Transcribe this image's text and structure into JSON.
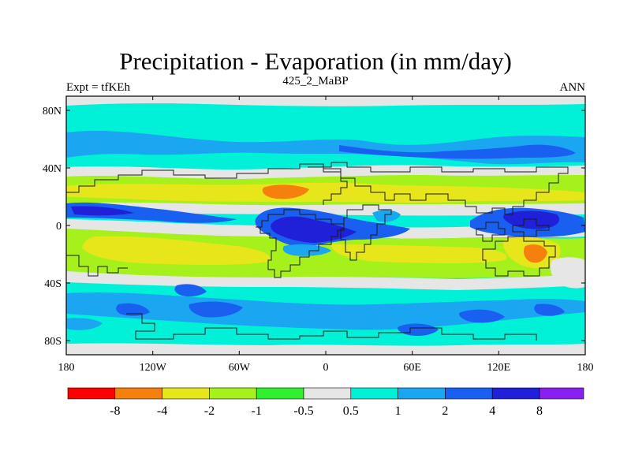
{
  "figure": {
    "title": "Precipitation - Evaporation (in mm/day)",
    "left_label": "Expt = tfKEh",
    "center_label": "425_2_MaBP",
    "right_label": "ANN"
  },
  "axes": {
    "y_ticks": [
      "80N",
      "40N",
      "0",
      "40S",
      "80S"
    ],
    "x_ticks": [
      "180",
      "120W",
      "60W",
      "0",
      "60E",
      "120E",
      "180"
    ]
  },
  "colorbar": {
    "colors": [
      "#ff0000",
      "#f5800d",
      "#e6e61a",
      "#a6f01c",
      "#30f030",
      "#e6e6e6",
      "#00f0d8",
      "#1aa6f0",
      "#1a60f0",
      "#2020d8",
      "#8a20f0"
    ],
    "labels": [
      "-8",
      "-4",
      "-2",
      "-1",
      "-0.5",
      "0.5",
      "1",
      "2",
      "4",
      "8"
    ]
  },
  "palette": {
    "cyan": "#00f0d8",
    "light_blue": "#1aa6f0",
    "blue": "#1a60f0",
    "dark_blue": "#2020d8",
    "gray": "#e6e6e6",
    "green": "#30f030",
    "lime": "#a6f01c",
    "yellow": "#e6e61a",
    "orange": "#f5800d",
    "coast": "#1a1a1a"
  }
}
